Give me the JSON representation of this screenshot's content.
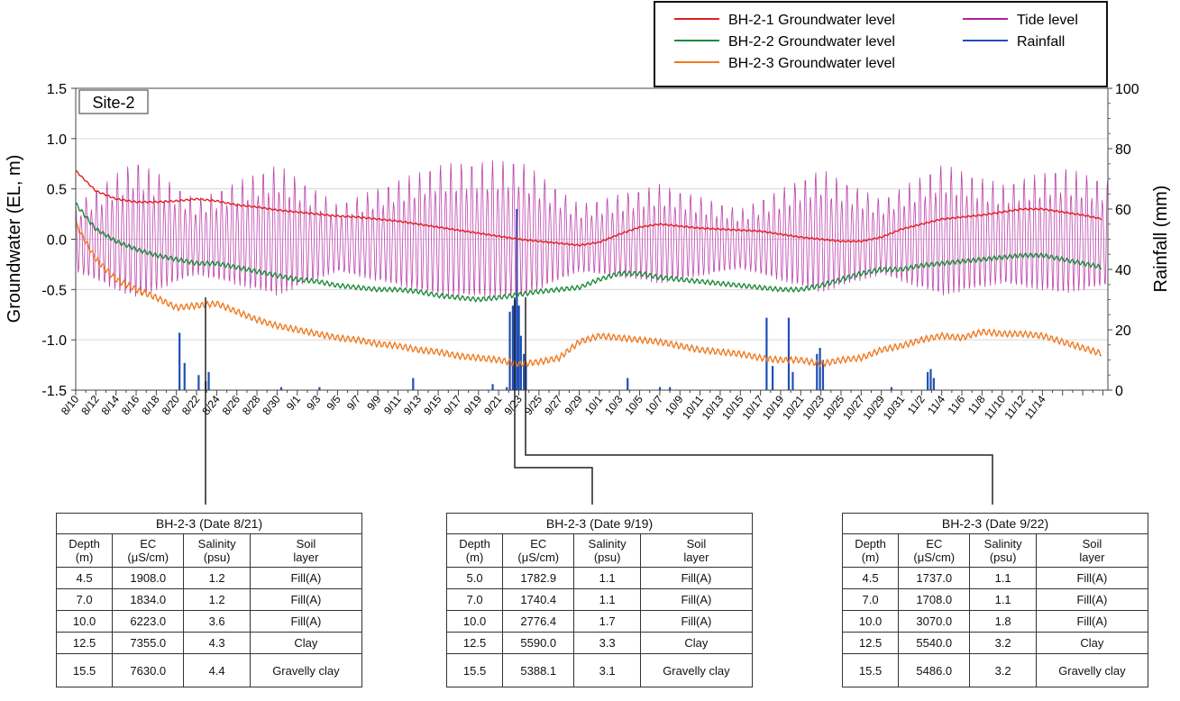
{
  "chart_data": {
    "type": "line",
    "site_label": "Site-2",
    "ylabel_left": "Groundwater (EL, m)",
    "ylabel_right": "Rainfall (mm)",
    "ylim_left": [
      -1.5,
      1.5
    ],
    "ylim_right": [
      0,
      100
    ],
    "y_ticks_left": [
      "1.5",
      "1.0",
      "0.5",
      "0.0",
      "-0.5",
      "-1.0",
      "-1.5"
    ],
    "y_ticks_right": [
      "100",
      "80",
      "60",
      "40",
      "20",
      "0"
    ],
    "x_ticks": [
      "8/10",
      "8/12",
      "8/14",
      "8/16",
      "8/18",
      "8/20",
      "8/22",
      "8/24",
      "8/26",
      "8/28",
      "8/30",
      "9/1",
      "9/3",
      "9/5",
      "9/7",
      "9/9",
      "9/11",
      "9/13",
      "9/15",
      "9/17",
      "9/19",
      "9/21",
      "9/23",
      "9/25",
      "9/27",
      "9/29",
      "10/1",
      "10/3",
      "10/5",
      "10/7",
      "10/9",
      "10/11",
      "10/13",
      "10/15",
      "10/17",
      "10/19",
      "10/21",
      "10/23",
      "10/25",
      "10/27",
      "10/29",
      "10/31",
      "11/2",
      "11/4",
      "11/6",
      "11/8",
      "11/10",
      "11/12",
      "11/14"
    ],
    "x_range_days": [
      0,
      98
    ],
    "legend": [
      {
        "label": "BH-2-1 Groundwater level",
        "color": "#e02020"
      },
      {
        "label": "BH-2-2 Groundwater level",
        "color": "#1e8a3c"
      },
      {
        "label": "BH-2-3 Groundwater level",
        "color": "#ee7a22"
      },
      {
        "label": "Tide level",
        "color": "#b0209e"
      },
      {
        "label": "Rainfall",
        "color": "#1f4fb5"
      }
    ],
    "series": [
      {
        "name": "BH-2-1 Groundwater level",
        "color": "#e02020",
        "points": [
          [
            0,
            0.68
          ],
          [
            2,
            0.48
          ],
          [
            4,
            0.4
          ],
          [
            6,
            0.37
          ],
          [
            8,
            0.37
          ],
          [
            10,
            0.38
          ],
          [
            12,
            0.4
          ],
          [
            14,
            0.38
          ],
          [
            16,
            0.34
          ],
          [
            18,
            0.32
          ],
          [
            20,
            0.29
          ],
          [
            22,
            0.27
          ],
          [
            24,
            0.25
          ],
          [
            26,
            0.23
          ],
          [
            28,
            0.22
          ],
          [
            30,
            0.2
          ],
          [
            32,
            0.18
          ],
          [
            34,
            0.15
          ],
          [
            36,
            0.12
          ],
          [
            38,
            0.09
          ],
          [
            40,
            0.06
          ],
          [
            42,
            0.03
          ],
          [
            44,
            0.0
          ],
          [
            46,
            -0.02
          ],
          [
            48,
            -0.04
          ],
          [
            50,
            -0.06
          ],
          [
            52,
            -0.03
          ],
          [
            54,
            0.05
          ],
          [
            56,
            0.12
          ],
          [
            58,
            0.15
          ],
          [
            60,
            0.13
          ],
          [
            62,
            0.11
          ],
          [
            64,
            0.1
          ],
          [
            66,
            0.09
          ],
          [
            68,
            0.08
          ],
          [
            70,
            0.05
          ],
          [
            72,
            0.02
          ],
          [
            74,
            0.0
          ],
          [
            76,
            -0.02
          ],
          [
            78,
            -0.02
          ],
          [
            80,
            0.02
          ],
          [
            82,
            0.1
          ],
          [
            84,
            0.15
          ],
          [
            86,
            0.2
          ],
          [
            88,
            0.22
          ],
          [
            90,
            0.24
          ],
          [
            92,
            0.27
          ],
          [
            94,
            0.3
          ],
          [
            96,
            0.3
          ],
          [
            98,
            0.27
          ],
          [
            100,
            0.24
          ],
          [
            102,
            0.2
          ]
        ]
      },
      {
        "name": "BH-2-2 Groundwater level",
        "color": "#1e8a3c",
        "points": [
          [
            0,
            0.35
          ],
          [
            2,
            0.1
          ],
          [
            4,
            -0.02
          ],
          [
            6,
            -0.1
          ],
          [
            8,
            -0.16
          ],
          [
            10,
            -0.2
          ],
          [
            12,
            -0.24
          ],
          [
            14,
            -0.24
          ],
          [
            16,
            -0.28
          ],
          [
            18,
            -0.32
          ],
          [
            20,
            -0.36
          ],
          [
            22,
            -0.4
          ],
          [
            24,
            -0.42
          ],
          [
            26,
            -0.46
          ],
          [
            28,
            -0.48
          ],
          [
            30,
            -0.5
          ],
          [
            32,
            -0.5
          ],
          [
            34,
            -0.52
          ],
          [
            36,
            -0.56
          ],
          [
            38,
            -0.58
          ],
          [
            40,
            -0.6
          ],
          [
            42,
            -0.58
          ],
          [
            44,
            -0.55
          ],
          [
            46,
            -0.52
          ],
          [
            48,
            -0.5
          ],
          [
            50,
            -0.48
          ],
          [
            52,
            -0.4
          ],
          [
            54,
            -0.34
          ],
          [
            56,
            -0.34
          ],
          [
            58,
            -0.38
          ],
          [
            60,
            -0.4
          ],
          [
            62,
            -0.42
          ],
          [
            64,
            -0.44
          ],
          [
            66,
            -0.46
          ],
          [
            68,
            -0.48
          ],
          [
            70,
            -0.5
          ],
          [
            72,
            -0.5
          ],
          [
            74,
            -0.46
          ],
          [
            76,
            -0.4
          ],
          [
            78,
            -0.34
          ],
          [
            80,
            -0.3
          ],
          [
            82,
            -0.3
          ],
          [
            84,
            -0.26
          ],
          [
            86,
            -0.24
          ],
          [
            88,
            -0.22
          ],
          [
            90,
            -0.2
          ],
          [
            92,
            -0.18
          ],
          [
            94,
            -0.16
          ],
          [
            96,
            -0.16
          ],
          [
            98,
            -0.2
          ],
          [
            100,
            -0.24
          ],
          [
            102,
            -0.28
          ]
        ]
      },
      {
        "name": "BH-2-3 Groundwater level",
        "color": "#ee7a22",
        "points": [
          [
            0,
            0.15
          ],
          [
            2,
            -0.2
          ],
          [
            4,
            -0.4
          ],
          [
            6,
            -0.5
          ],
          [
            8,
            -0.58
          ],
          [
            10,
            -0.68
          ],
          [
            12,
            -0.66
          ],
          [
            14,
            -0.64
          ],
          [
            16,
            -0.72
          ],
          [
            18,
            -0.8
          ],
          [
            20,
            -0.86
          ],
          [
            22,
            -0.9
          ],
          [
            24,
            -0.94
          ],
          [
            26,
            -0.98
          ],
          [
            28,
            -1.0
          ],
          [
            30,
            -1.04
          ],
          [
            32,
            -1.06
          ],
          [
            34,
            -1.1
          ],
          [
            36,
            -1.12
          ],
          [
            38,
            -1.16
          ],
          [
            40,
            -1.18
          ],
          [
            42,
            -1.2
          ],
          [
            44,
            -1.24
          ],
          [
            46,
            -1.22
          ],
          [
            48,
            -1.18
          ],
          [
            50,
            -1.02
          ],
          [
            52,
            -0.96
          ],
          [
            54,
            -0.98
          ],
          [
            56,
            -1.0
          ],
          [
            58,
            -1.02
          ],
          [
            60,
            -1.06
          ],
          [
            62,
            -1.1
          ],
          [
            64,
            -1.12
          ],
          [
            66,
            -1.14
          ],
          [
            68,
            -1.18
          ],
          [
            70,
            -1.2
          ],
          [
            72,
            -1.2
          ],
          [
            74,
            -1.24
          ],
          [
            76,
            -1.2
          ],
          [
            78,
            -1.18
          ],
          [
            80,
            -1.1
          ],
          [
            82,
            -1.06
          ],
          [
            84,
            -1.0
          ],
          [
            86,
            -0.96
          ],
          [
            88,
            -0.98
          ],
          [
            90,
            -0.92
          ],
          [
            92,
            -0.94
          ],
          [
            94,
            -0.94
          ],
          [
            96,
            -0.96
          ],
          [
            98,
            -1.02
          ],
          [
            100,
            -1.08
          ],
          [
            102,
            -1.14
          ]
        ]
      },
      {
        "name": "Tide level",
        "color": "#b0209e",
        "note": "semi-diurnal oscillation with spring-neap envelope",
        "envelope": [
          [
            0,
            0.35
          ],
          [
            6,
            0.8
          ],
          [
            12,
            0.4
          ],
          [
            20,
            0.75
          ],
          [
            26,
            0.35
          ],
          [
            36,
            0.75
          ],
          [
            44,
            0.8
          ],
          [
            50,
            0.35
          ],
          [
            58,
            0.55
          ],
          [
            66,
            0.3
          ],
          [
            74,
            0.7
          ],
          [
            80,
            0.4
          ],
          [
            86,
            0.75
          ],
          [
            92,
            0.55
          ],
          [
            98,
            0.72
          ],
          [
            102,
            0.6
          ]
        ],
        "range_low": [
          -0.75,
          -0.35
        ]
      }
    ],
    "rainfall_mm": [
      [
        10.3,
        19
      ],
      [
        10.8,
        9
      ],
      [
        12.2,
        5
      ],
      [
        12.9,
        3
      ],
      [
        13.2,
        6
      ],
      [
        20.4,
        1
      ],
      [
        24.2,
        1
      ],
      [
        33.5,
        4
      ],
      [
        41.4,
        2
      ],
      [
        42.8,
        1
      ],
      [
        43.1,
        26
      ],
      [
        43.4,
        28
      ],
      [
        43.6,
        30
      ],
      [
        43.8,
        60
      ],
      [
        44.0,
        28
      ],
      [
        44.2,
        18
      ],
      [
        44.5,
        12
      ],
      [
        44.7,
        8
      ],
      [
        54.8,
        4
      ],
      [
        58.0,
        1
      ],
      [
        59.0,
        1
      ],
      [
        68.6,
        24
      ],
      [
        69.2,
        8
      ],
      [
        70.8,
        24
      ],
      [
        71.2,
        6
      ],
      [
        73.6,
        12
      ],
      [
        73.9,
        14
      ],
      [
        74.2,
        10
      ],
      [
        81.0,
        1
      ],
      [
        84.6,
        6
      ],
      [
        84.9,
        7
      ],
      [
        85.2,
        4
      ]
    ]
  },
  "tables": [
    {
      "title": "BH-2-3 (Date 8/21)",
      "headers": [
        [
          "Depth",
          "(m)"
        ],
        [
          "EC",
          "(μS/cm)"
        ],
        [
          "Salinity",
          "(psu)"
        ],
        [
          "Soil",
          "layer"
        ]
      ],
      "rows": [
        [
          "4.5",
          "1908.0",
          "1.2",
          "Fill(A)"
        ],
        [
          "7.0",
          "1834.0",
          "1.2",
          "Fill(A)"
        ],
        [
          "10.0",
          "6223.0",
          "3.6",
          "Fill(A)"
        ],
        [
          "12.5",
          "7355.0",
          "4.3",
          "Clay"
        ],
        [
          "15.5",
          "7630.0",
          "4.4",
          "Gravelly clay"
        ]
      ]
    },
    {
      "title": "BH-2-3 (Date 9/19)",
      "headers": [
        [
          "Depth",
          "(m)"
        ],
        [
          "EC",
          "(μS/cm)"
        ],
        [
          "Salinity",
          "(psu)"
        ],
        [
          "Soil",
          "layer"
        ]
      ],
      "rows": [
        [
          "5.0",
          "1782.9",
          "1.1",
          "Fill(A)"
        ],
        [
          "7.0",
          "1740.4",
          "1.1",
          "Fill(A)"
        ],
        [
          "10.0",
          "2776.4",
          "1.7",
          "Fill(A)"
        ],
        [
          "12.5",
          "5590.0",
          "3.3",
          "Clay"
        ],
        [
          "15.5",
          "5388.1",
          "3.1",
          "Gravelly clay"
        ]
      ]
    },
    {
      "title": "BH-2-3 (Date 9/22)",
      "headers": [
        [
          "Depth",
          "(m)"
        ],
        [
          "EC",
          "(μS/cm)"
        ],
        [
          "Salinity",
          "(psu)"
        ],
        [
          "Soil",
          "layer"
        ]
      ],
      "rows": [
        [
          "4.5",
          "1737.0",
          "1.1",
          "Fill(A)"
        ],
        [
          "7.0",
          "1708.0",
          "1.1",
          "Fill(A)"
        ],
        [
          "10.0",
          "3070.0",
          "1.8",
          "Fill(A)"
        ],
        [
          "12.5",
          "5540.0",
          "3.2",
          "Clay"
        ],
        [
          "15.5",
          "5486.0",
          "3.2",
          "Gravelly clay"
        ]
      ]
    }
  ],
  "callout_dates": [
    "8/21",
    "9/19",
    "9/22"
  ]
}
